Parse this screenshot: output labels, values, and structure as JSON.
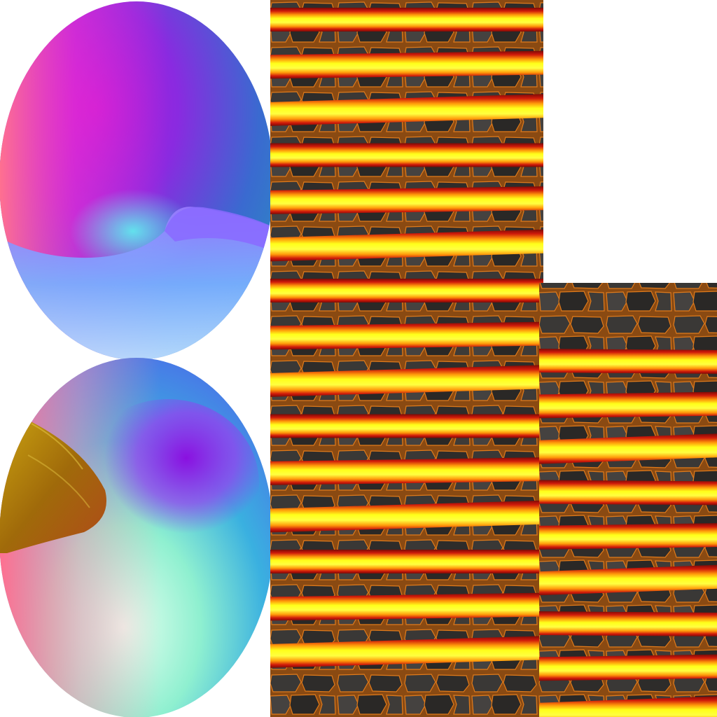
{
  "atlas": {
    "background": "#ffffff",
    "panels": [
      {
        "name": "normal-map-sphere-top",
        "kind": "normal-map"
      },
      {
        "name": "normal-map-sphere-bottom",
        "kind": "normal-map"
      },
      {
        "name": "lava-strip-column-left",
        "kind": "lava-tiles",
        "strip_count": 15
      },
      {
        "name": "lava-strip-column-right",
        "kind": "lava-tiles",
        "strip_count": 9
      }
    ],
    "colors": {
      "lava_core": "#ffff1a",
      "lava_mid": "#ff9a0a",
      "lava_edge": "#d01a0a",
      "lava_dark": "#7a0a06",
      "rock_dark": "#2e2c2a",
      "rock_mid": "#4a4744",
      "crack_glow": "#e07a1a",
      "normal_magenta": "#ff2fd0",
      "normal_purple": "#7a1aff",
      "normal_blue": "#2e7ad0",
      "normal_cyan": "#3fe6d6",
      "normal_pink": "#ff8090",
      "normal_white": "#f0fff0",
      "normal_amber": "#a06a0a"
    }
  }
}
